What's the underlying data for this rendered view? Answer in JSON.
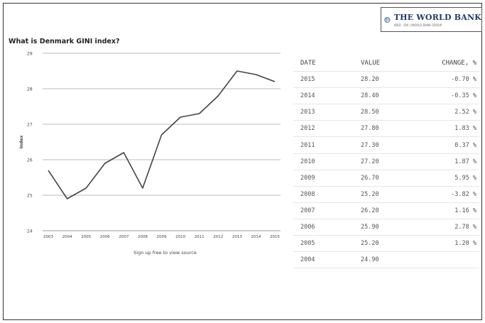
{
  "logo": {
    "title": "THE WORLD BANK",
    "subtitle": "IBRD · IDA | WORLD BANK GROUP",
    "icon": "world-bank-globe-icon"
  },
  "chart_data": {
    "type": "line",
    "title": "What is Denmark GINI index?",
    "ylabel": "Index",
    "xlabel": "",
    "x": [
      "2003",
      "2004",
      "2005",
      "2006",
      "2007",
      "2008",
      "2009",
      "2010",
      "2011",
      "2012",
      "2013",
      "2014",
      "2015"
    ],
    "values": [
      25.7,
      24.9,
      25.2,
      25.9,
      26.2,
      25.2,
      26.7,
      27.2,
      27.3,
      27.8,
      28.5,
      28.4,
      28.2
    ],
    "ylim": [
      24,
      29
    ],
    "yticks": [
      "24",
      "25",
      "26",
      "27",
      "28",
      "29"
    ],
    "grid": true,
    "line_color": "#444444",
    "source_text": "Sign up free to view source"
  },
  "table": {
    "headers": [
      "DATE",
      "VALUE",
      "CHANGE, %"
    ],
    "rows": [
      {
        "date": "2015",
        "value": "28.20",
        "change": "-0.70 %"
      },
      {
        "date": "2014",
        "value": "28.40",
        "change": "-0.35 %"
      },
      {
        "date": "2013",
        "value": "28.50",
        "change": "2.52 %"
      },
      {
        "date": "2012",
        "value": "27.80",
        "change": "1.83 %"
      },
      {
        "date": "2011",
        "value": "27.30",
        "change": "0.37 %"
      },
      {
        "date": "2010",
        "value": "27.20",
        "change": "1.87 %"
      },
      {
        "date": "2009",
        "value": "26.70",
        "change": "5.95 %"
      },
      {
        "date": "2008",
        "value": "25.20",
        "change": "-3.82 %"
      },
      {
        "date": "2007",
        "value": "26.20",
        "change": "1.16 %"
      },
      {
        "date": "2006",
        "value": "25.90",
        "change": "2.78 %"
      },
      {
        "date": "2005",
        "value": "25.20",
        "change": "1.20 %"
      },
      {
        "date": "2004",
        "value": "24.90",
        "change": ""
      }
    ]
  }
}
